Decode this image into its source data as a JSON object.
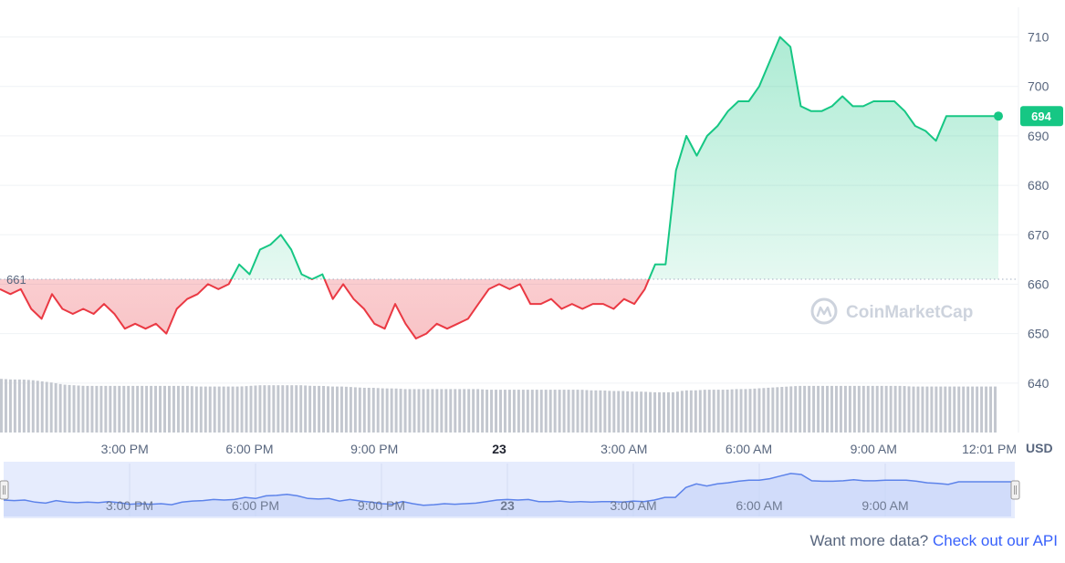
{
  "chart_data": {
    "type": "line",
    "currency_label": "USD",
    "reference_value": 661,
    "reference_label": "661",
    "current_value": 694,
    "current_label": "694",
    "ylim": [
      630,
      716
    ],
    "y_ticks": [
      640,
      650,
      660,
      670,
      680,
      690,
      700,
      710
    ],
    "x_ticks": [
      {
        "label": "3:00 PM",
        "t": 3,
        "bold": false
      },
      {
        "label": "6:00 PM",
        "t": 6,
        "bold": false
      },
      {
        "label": "9:00 PM",
        "t": 9,
        "bold": false
      },
      {
        "label": "23",
        "t": 12,
        "bold": true
      },
      {
        "label": "3:00 AM",
        "t": 15,
        "bold": false
      },
      {
        "label": "6:00 AM",
        "t": 18,
        "bold": false
      },
      {
        "label": "9:00 AM",
        "t": 21,
        "bold": false
      },
      {
        "label": "12:01 PM",
        "t": 24,
        "bold": false
      }
    ],
    "navigator_labels": [
      "3:00 PM",
      "6:00 PM",
      "9:00 PM",
      "23",
      "3:00 AM",
      "6:00 AM",
      "9:00 AM"
    ],
    "series": [
      {
        "x": [
          0,
          0.25,
          0.5,
          0.75,
          1,
          1.25,
          1.5,
          1.75,
          2,
          2.25,
          2.5,
          2.75,
          3,
          3.25,
          3.5,
          3.75,
          4,
          4.25,
          4.5,
          4.75,
          5,
          5.25,
          5.5,
          5.75,
          6,
          6.25,
          6.5,
          6.75,
          7,
          7.25,
          7.5,
          7.75,
          8,
          8.25,
          8.5,
          8.75,
          9,
          9.25,
          9.5,
          9.75,
          10,
          10.25,
          10.5,
          10.75,
          11,
          11.25,
          11.5,
          11.75,
          12,
          12.25,
          12.5,
          12.75,
          13,
          13.25,
          13.5,
          13.75,
          14,
          14.25,
          14.5,
          14.75,
          15,
          15.25,
          15.5,
          15.75,
          16,
          16.25,
          16.5,
          16.75,
          17,
          17.25,
          17.5,
          17.75,
          18,
          18.25,
          18.5,
          18.75,
          19,
          19.25,
          19.5,
          19.75,
          20,
          20.25,
          20.5,
          20.75,
          21,
          21.25,
          21.5,
          21.75,
          22,
          22.25,
          22.5,
          22.75,
          23,
          23.25,
          23.5,
          23.75,
          24
        ],
        "y": [
          659,
          658,
          659,
          655,
          653,
          658,
          655,
          654,
          655,
          654,
          656,
          654,
          651,
          652,
          651,
          652,
          650,
          655,
          657,
          658,
          660,
          659,
          660,
          664,
          662,
          667,
          668,
          670,
          667,
          662,
          661,
          662,
          657,
          660,
          657,
          655,
          652,
          651,
          656,
          652,
          649,
          650,
          652,
          651,
          652,
          653,
          656,
          659,
          660,
          659,
          660,
          656,
          656,
          657,
          655,
          656,
          655,
          656,
          656,
          655,
          657,
          656,
          659,
          664,
          664,
          683,
          690,
          686,
          690,
          692,
          695,
          697,
          697,
          700,
          705,
          710,
          708,
          696,
          695,
          695,
          696,
          698,
          696,
          696,
          697,
          697,
          697,
          695,
          692,
          691,
          689,
          694,
          694,
          694,
          694,
          694,
          694
        ],
        "volume": [
          0.84,
          0.83,
          0.83,
          0.82,
          0.8,
          0.78,
          0.75,
          0.74,
          0.73,
          0.73,
          0.73,
          0.73,
          0.73,
          0.73,
          0.73,
          0.73,
          0.73,
          0.73,
          0.73,
          0.72,
          0.72,
          0.72,
          0.72,
          0.72,
          0.73,
          0.74,
          0.74,
          0.74,
          0.74,
          0.74,
          0.73,
          0.73,
          0.72,
          0.72,
          0.71,
          0.7,
          0.7,
          0.69,
          0.69,
          0.68,
          0.68,
          0.68,
          0.68,
          0.68,
          0.68,
          0.68,
          0.68,
          0.67,
          0.67,
          0.67,
          0.67,
          0.67,
          0.67,
          0.67,
          0.67,
          0.67,
          0.67,
          0.66,
          0.66,
          0.65,
          0.65,
          0.64,
          0.64,
          0.63,
          0.63,
          0.63,
          0.66,
          0.66,
          0.67,
          0.67,
          0.67,
          0.68,
          0.68,
          0.69,
          0.7,
          0.71,
          0.72,
          0.73,
          0.73,
          0.73,
          0.73,
          0.73,
          0.73,
          0.73,
          0.73,
          0.73,
          0.73,
          0.73,
          0.72,
          0.72,
          0.72,
          0.72,
          0.72,
          0.72,
          0.72,
          0.72,
          0.72
        ]
      }
    ],
    "colors": {
      "up": "#16c784",
      "down": "#ea3943",
      "volume": "#c3c7cf",
      "grid": "#eff2f5",
      "axis_text": "#58667e",
      "navigator_fill": "#e6ecfd",
      "navigator_line": "#5d83ea"
    },
    "watermark": "CoinMarketCap"
  },
  "footer": {
    "prompt": "Want more data? ",
    "link_text": "Check out our API"
  }
}
